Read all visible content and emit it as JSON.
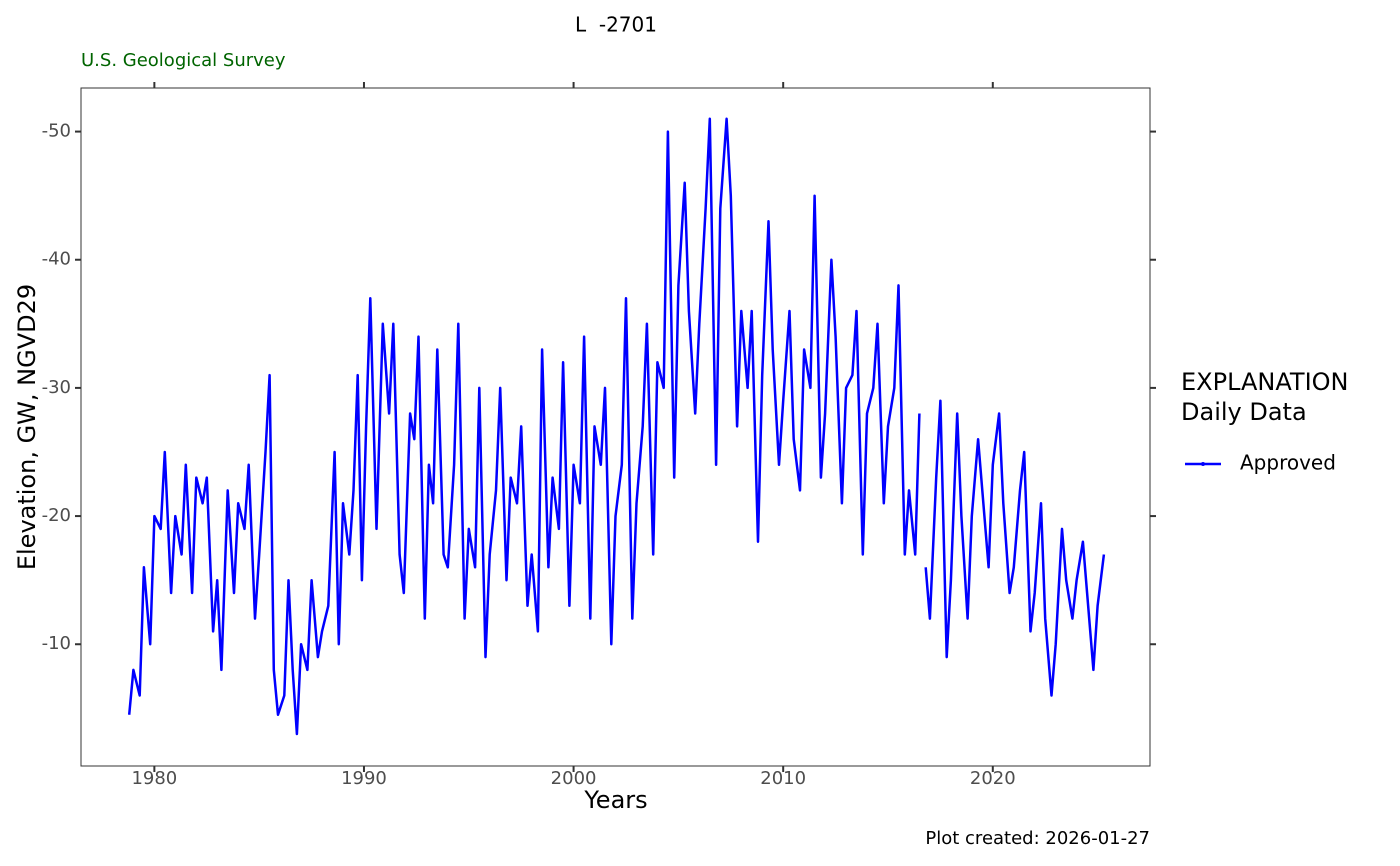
{
  "chart_data": {
    "type": "line",
    "title": "L  -2701",
    "subtitle": "U.S. Geological Survey",
    "caption": "Plot created: 2026-01-27",
    "x_label": "Years",
    "y_label": "Elevation, GW, NGVD29",
    "legend_title": "EXPLANATION",
    "legend_subtitle": "Daily Data",
    "x": [
      1978.8,
      1979.0,
      1979.3,
      1979.5,
      1979.8,
      1980.0,
      1980.3,
      1980.5,
      1980.8,
      1981.0,
      1981.3,
      1981.5,
      1981.8,
      1982.0,
      1982.3,
      1982.5,
      1982.8,
      1983.0,
      1983.2,
      1983.5,
      1983.8,
      1984.0,
      1984.3,
      1984.5,
      1984.8,
      1985.0,
      1985.3,
      1985.5,
      1985.7,
      1985.9,
      1986.2,
      1986.4,
      1986.6,
      1986.8,
      1987.0,
      1987.3,
      1987.5,
      1987.8,
      1988.0,
      1988.3,
      1988.6,
      1988.8,
      1989.0,
      1989.3,
      1989.5,
      1989.7,
      1989.9,
      1990.1,
      1990.3,
      1990.6,
      1990.9,
      1991.2,
      1991.4,
      1991.7,
      1991.9,
      1992.2,
      1992.4,
      1992.6,
      1992.9,
      1993.1,
      1993.3,
      1993.5,
      1993.8,
      1994.0,
      1994.3,
      1994.5,
      1994.8,
      1995.0,
      1995.3,
      1995.5,
      1995.8,
      1996.0,
      1996.3,
      1996.5,
      1996.8,
      1997.0,
      1997.3,
      1997.5,
      1997.8,
      1998.0,
      1998.3,
      1998.5,
      1998.8,
      1999.0,
      1999.3,
      1999.5,
      1999.8,
      2000.0,
      2000.3,
      2000.5,
      2000.8,
      2001.0,
      2001.3,
      2001.5,
      2001.8,
      2002.0,
      2002.3,
      2002.5,
      2002.8,
      2003.0,
      2003.3,
      2003.5,
      2003.8,
      2004.0,
      2004.3,
      2004.5,
      2004.8,
      2005.0,
      2005.3,
      2005.5,
      2005.8,
      2006.0,
      2006.3,
      2006.5,
      2006.8,
      2007.0,
      2007.3,
      2007.5,
      2007.8,
      2008.0,
      2008.3,
      2008.5,
      2008.8,
      2009.0,
      2009.3,
      2009.5,
      2009.8,
      2010.0,
      2010.3,
      2010.5,
      2010.8,
      2011.0,
      2011.3,
      2011.5,
      2011.8,
      2012.0,
      2012.3,
      2012.5,
      2012.8,
      2013.0,
      2013.3,
      2013.5,
      2013.8,
      2014.0,
      2014.3,
      2014.5,
      2014.8,
      2015.0,
      2015.3,
      2015.5,
      2015.8,
      2016.0,
      2016.3,
      2016.5,
      2016.65,
      2016.8,
      2017.0,
      2017.3,
      2017.5,
      2017.8,
      2018.0,
      2018.3,
      2018.5,
      2018.8,
      2019.0,
      2019.3,
      2019.5,
      2019.8,
      2020.0,
      2020.3,
      2020.5,
      2020.8,
      2021.0,
      2021.3,
      2021.5,
      2021.8,
      2022.0,
      2022.3,
      2022.5,
      2022.8,
      2023.0,
      2023.3,
      2023.5,
      2023.8,
      2024.0,
      2024.3,
      2024.5,
      2024.8,
      2025.0,
      2025.3
    ],
    "series": [
      {
        "name": "Approved",
        "color": "#0000ff",
        "values": [
          -4.5,
          -8,
          -6,
          -16,
          -10,
          -20,
          -19,
          -25,
          -14,
          -20,
          -17,
          -24,
          -14,
          -23,
          -21,
          -23,
          -11,
          -15,
          -8,
          -22,
          -14,
          -21,
          -19,
          -24,
          -12,
          -17,
          -25,
          -31,
          -8,
          -4.5,
          -6,
          -15,
          -8,
          -3,
          -10,
          -8,
          -15,
          -9,
          -11,
          -13,
          -25,
          -10,
          -21,
          -17,
          -22,
          -31,
          -15,
          -27,
          -37,
          -19,
          -35,
          -28,
          -35,
          -17,
          -14,
          -28,
          -26,
          -34,
          -12,
          -24,
          -21,
          -33,
          -17,
          -16,
          -24,
          -35,
          -12,
          -19,
          -16,
          -30,
          -9,
          -17,
          -22,
          -30,
          -15,
          -23,
          -21,
          -27,
          -13,
          -17,
          -11,
          -33,
          -16,
          -23,
          -19,
          -32,
          -13,
          -24,
          -21,
          -34,
          -12,
          -27,
          -24,
          -30,
          -10,
          -20,
          -24,
          -37,
          -12,
          -21,
          -27,
          -35,
          -17,
          -32,
          -30,
          -50,
          -23,
          -38,
          -46,
          -36,
          -28,
          -35,
          -44,
          -51,
          -24,
          -44,
          -51,
          -45,
          -27,
          -36,
          -30,
          -36,
          -18,
          -31,
          -43,
          -33,
          -24,
          -29,
          -36,
          -26,
          -22,
          -33,
          -30,
          -45,
          -23,
          -28,
          -40,
          -34,
          -21,
          -30,
          -31,
          -36,
          -17,
          -28,
          -30,
          -35,
          -21,
          -27,
          -30,
          -38,
          -17,
          -22,
          -17,
          -28,
          null,
          -16,
          -12,
          -23,
          -29,
          -9,
          -15,
          -28,
          -20,
          -12,
          -20,
          -26,
          -22,
          -16,
          -24,
          -28,
          -21,
          -14,
          -16,
          -22,
          -25,
          -11,
          -14,
          -21,
          -12,
          -6,
          -10,
          -19,
          -15,
          -12,
          -15,
          -18,
          -14,
          -8,
          -13,
          -17
        ]
      }
    ],
    "xlim": [
      1976.5,
      2027.5
    ],
    "ylim": [
      -0.5,
      -53.4
    ],
    "xticks": [
      1980,
      1990,
      2000,
      2010,
      2020
    ],
    "yticks": [
      -50,
      -40,
      -30,
      -20,
      -10
    ]
  }
}
